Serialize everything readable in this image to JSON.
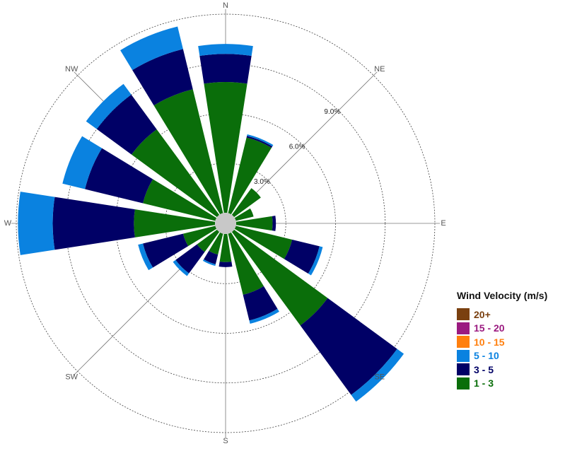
{
  "chart_data": {
    "type": "polar-stacked-bar",
    "directions": [
      "N",
      "NNE",
      "NE",
      "ENE",
      "E",
      "ESE",
      "SE",
      "SSE",
      "S",
      "SSW",
      "SW",
      "WSW",
      "W",
      "WNW",
      "NW",
      "NNW"
    ],
    "axis_labels": [
      "N",
      "NE",
      "E",
      "SE",
      "S",
      "SW",
      "W",
      "NW"
    ],
    "ring_labels": [
      "3.0%",
      "6.0%",
      "9.0%"
    ],
    "ring_values": [
      3,
      6,
      9,
      12
    ],
    "rmax": 12.3,
    "series": [
      {
        "name": "1 - 3",
        "color": "#0a6e0a",
        "text_color": "#0a6e0a",
        "values": [
          7.9,
          4.7,
          2.0,
          1.1,
          2.2,
          3.5,
          7.0,
          3.8,
          1.7,
          1.3,
          1.5,
          2.0,
          4.9,
          4.5,
          6.4,
          7.7
        ]
      },
      {
        "name": "3 - 5",
        "color": "#000066",
        "text_color": "#000066",
        "values": [
          1.7,
          0.1,
          0.0,
          0.0,
          0.2,
          1.7,
          5.2,
          1.6,
          0.3,
          0.6,
          1.6,
          2.5,
          4.9,
          3.6,
          2.6,
          2.5
        ]
      },
      {
        "name": "5 - 10",
        "color": "#0a82e0",
        "text_color": "#0a82e0",
        "values": [
          0.6,
          0.1,
          0.0,
          0.0,
          0.0,
          0.2,
          0.5,
          0.2,
          0.0,
          0.1,
          0.2,
          0.3,
          2.1,
          1.4,
          0.8,
          1.4
        ]
      },
      {
        "name": "10 - 15",
        "color": "#ff7f0e",
        "text_color": "#ff7f0e",
        "values": [
          0,
          0,
          0,
          0,
          0,
          0,
          0,
          0,
          0,
          0,
          0,
          0,
          0,
          0,
          0,
          0
        ]
      },
      {
        "name": "15 - 20",
        "color": "#9b1a80",
        "text_color": "#9b1a80",
        "values": [
          0,
          0,
          0,
          0,
          0,
          0,
          0,
          0,
          0,
          0,
          0,
          0,
          0,
          0,
          0,
          0
        ]
      },
      {
        "name": "20+",
        "color": "#7a4010",
        "text_color": "#7a4010",
        "values": [
          0,
          0,
          0,
          0,
          0,
          0,
          0,
          0,
          0,
          0,
          0,
          0,
          0,
          0,
          0,
          0
        ]
      }
    ],
    "legend": {
      "title": "Wind Velocity (m/s)",
      "entries_order": [
        "20+",
        "15 - 20",
        "10 - 15",
        "5 - 10",
        "3 - 5",
        "1 - 3"
      ]
    },
    "grid": true,
    "legend_position": "right"
  }
}
